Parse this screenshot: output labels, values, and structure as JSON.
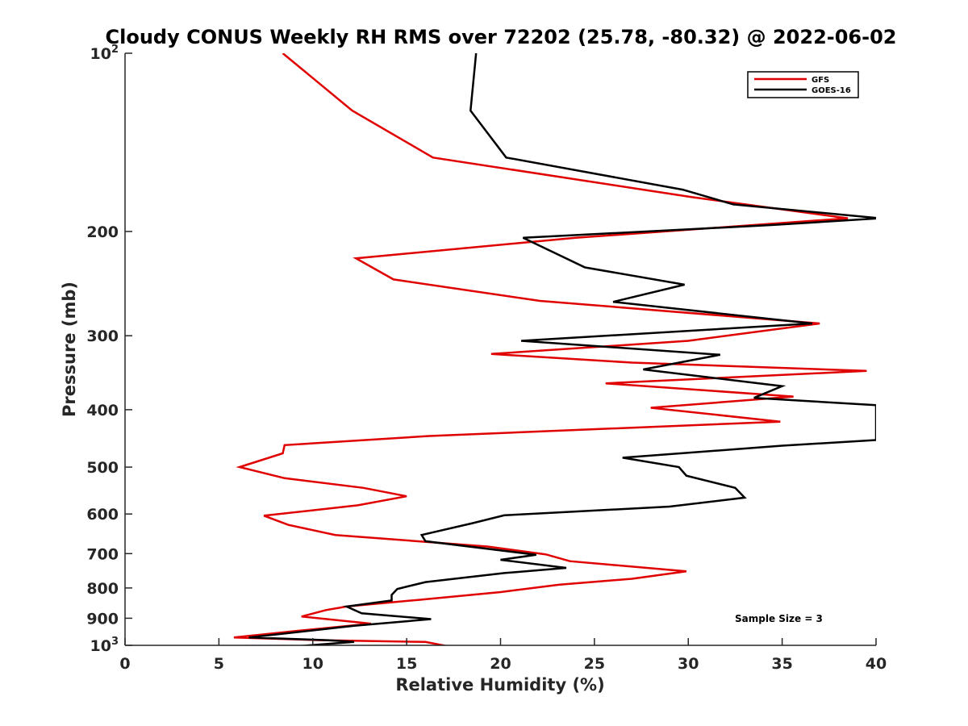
{
  "chart_data": {
    "type": "line",
    "title": "Cloudy CONUS Weekly RH RMS over 72202 (25.78, -80.32) @ 2022-06-02",
    "xlabel": "Relative Humidity (%)",
    "ylabel": "Pressure (mb)",
    "xlim": [
      0,
      40
    ],
    "ylim": [
      100,
      1000
    ],
    "yscale": "log",
    "y_reversed": true,
    "grid": false,
    "legend_position": "top-right",
    "x_ticks": [
      {
        "value": 0,
        "label": "0"
      },
      {
        "value": 5,
        "label": "5"
      },
      {
        "value": 10,
        "label": "10"
      },
      {
        "value": 15,
        "label": "15"
      },
      {
        "value": 20,
        "label": "20"
      },
      {
        "value": 25,
        "label": "25"
      },
      {
        "value": 30,
        "label": "30"
      },
      {
        "value": 35,
        "label": "35"
      },
      {
        "value": 40,
        "label": "40"
      }
    ],
    "y_ticks": [
      {
        "value": 100,
        "base": "10",
        "exp": "2"
      },
      {
        "value": 200,
        "base": "200",
        "exp": ""
      },
      {
        "value": 300,
        "base": "300",
        "exp": ""
      },
      {
        "value": 400,
        "base": "400",
        "exp": ""
      },
      {
        "value": 500,
        "base": "500",
        "exp": ""
      },
      {
        "value": 600,
        "base": "600",
        "exp": ""
      },
      {
        "value": 700,
        "base": "700",
        "exp": ""
      },
      {
        "value": 800,
        "base": "800",
        "exp": ""
      },
      {
        "value": 900,
        "base": "900",
        "exp": ""
      },
      {
        "value": 1000,
        "base": "10",
        "exp": "3"
      }
    ],
    "series": [
      {
        "name": "GFS",
        "color": "#e00000",
        "points": [
          [
            8.4,
            100
          ],
          [
            12.1,
            125
          ],
          [
            16.4,
            150
          ],
          [
            30.2,
            175
          ],
          [
            38.5,
            190
          ],
          [
            24.0,
            205
          ],
          [
            12.3,
            222
          ],
          [
            14.3,
            241
          ],
          [
            22.1,
            262
          ],
          [
            37.0,
            286
          ],
          [
            30.0,
            306
          ],
          [
            19.5,
            322
          ],
          [
            27.0,
            333
          ],
          [
            39.5,
            344
          ],
          [
            25.6,
            361
          ],
          [
            35.6,
            380
          ],
          [
            28.0,
            397
          ],
          [
            34.9,
            419
          ],
          [
            16.2,
            443
          ],
          [
            8.5,
            459
          ],
          [
            8.4,
            474
          ],
          [
            6.1,
            500
          ],
          [
            8.5,
            522
          ],
          [
            12.7,
            542
          ],
          [
            15.0,
            560
          ],
          [
            12.4,
            580
          ],
          [
            7.4,
            604
          ],
          [
            8.7,
            626
          ],
          [
            11.2,
            651
          ],
          [
            19.3,
            681
          ],
          [
            22.4,
            702
          ],
          [
            23.7,
            721
          ],
          [
            29.9,
            750
          ],
          [
            27.0,
            772
          ],
          [
            23.1,
            790
          ],
          [
            20.0,
            813
          ],
          [
            15.6,
            838
          ],
          [
            11.8,
            860
          ],
          [
            10.7,
            872
          ],
          [
            9.4,
            894
          ],
          [
            13.1,
            919
          ],
          [
            9.2,
            945
          ],
          [
            5.8,
            970
          ],
          [
            10.4,
            980
          ],
          [
            16.0,
            987
          ],
          [
            17.3,
            1005
          ]
        ]
      },
      {
        "name": "GOES-16",
        "color": "#000000",
        "points": [
          [
            18.7,
            100
          ],
          [
            18.4,
            125
          ],
          [
            20.3,
            150
          ],
          [
            29.7,
            170
          ],
          [
            32.4,
            180
          ],
          [
            40.2,
            190
          ],
          [
            34.5,
            195
          ],
          [
            21.2,
            205
          ],
          [
            24.5,
            230
          ],
          [
            29.8,
            246
          ],
          [
            26.0,
            263
          ],
          [
            36.6,
            286
          ],
          [
            21.1,
            306
          ],
          [
            31.7,
            323
          ],
          [
            27.6,
            342
          ],
          [
            35.0,
            365
          ],
          [
            33.5,
            382
          ],
          [
            40.0,
            393
          ],
          [
            40.0,
            450
          ],
          [
            35.0,
            460
          ],
          [
            26.5,
            482
          ],
          [
            29.5,
            500
          ],
          [
            29.9,
            517
          ],
          [
            32.5,
            542
          ],
          [
            33.0,
            563
          ],
          [
            29.0,
            583
          ],
          [
            20.2,
            603
          ],
          [
            18.5,
            622
          ],
          [
            15.8,
            651
          ],
          [
            16.0,
            667
          ],
          [
            21.9,
            703
          ],
          [
            20.0,
            717
          ],
          [
            23.5,
            740
          ],
          [
            20.2,
            755
          ],
          [
            16.0,
            782
          ],
          [
            14.5,
            803
          ],
          [
            14.2,
            822
          ],
          [
            14.2,
            840
          ],
          [
            11.8,
            860
          ],
          [
            12.6,
            883
          ],
          [
            16.3,
            903
          ],
          [
            12.2,
            927
          ],
          [
            6.6,
            970
          ],
          [
            10.8,
            980
          ],
          [
            12.2,
            987
          ],
          [
            8.9,
            1005
          ]
        ]
      }
    ],
    "annotation": "Sample Size = 3"
  }
}
